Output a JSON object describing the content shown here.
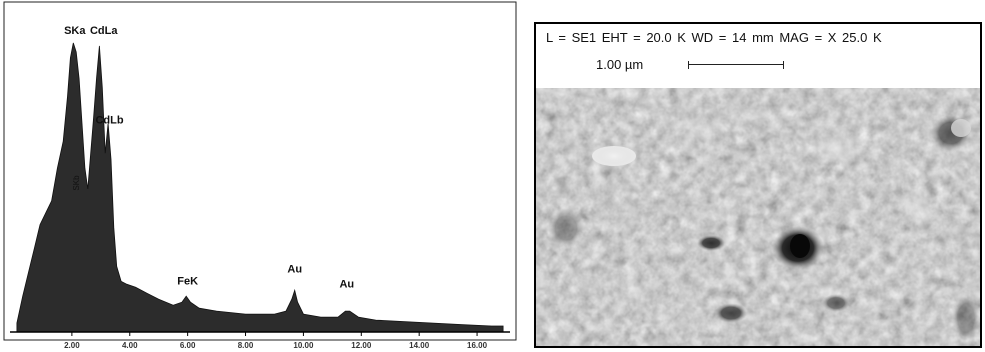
{
  "chart_data": {
    "type": "line",
    "title": "",
    "xlabel": "",
    "ylabel": "",
    "xlim": [
      0,
      17
    ],
    "ylim": [
      0,
      100
    ],
    "xticks": [
      "2.00",
      "4.00",
      "6.00",
      "8.00",
      "10.00",
      "12.00",
      "14.00",
      "16.00"
    ],
    "grid": false,
    "series": [
      {
        "x": [
          0.1,
          0.3,
          0.5,
          0.7,
          0.9,
          1.1,
          1.3,
          1.5,
          1.7,
          1.85,
          1.95,
          2.05,
          2.15,
          2.25,
          2.35,
          2.45,
          2.55,
          2.65,
          2.75,
          2.85,
          2.95,
          3.05,
          3.15,
          3.25,
          3.35,
          3.45,
          3.55,
          3.7,
          3.9,
          4.2,
          4.6,
          5.0,
          5.5,
          5.8,
          5.95,
          6.1,
          6.4,
          7.0,
          8.0,
          9.0,
          9.4,
          9.6,
          9.7,
          9.8,
          10.0,
          10.6,
          11.2,
          11.45,
          11.6,
          11.9,
          12.5,
          13.5,
          14.5,
          15.5,
          16.5,
          16.9
        ],
        "y": [
          3,
          12,
          20,
          28,
          36,
          40,
          44,
          55,
          64,
          79,
          92,
          97,
          94,
          85,
          70,
          55,
          48,
          60,
          72,
          85,
          96,
          82,
          60,
          70,
          58,
          35,
          22,
          17,
          16,
          15,
          13,
          11,
          9,
          10,
          12,
          10,
          8,
          7,
          6,
          6,
          7,
          11,
          14,
          10,
          6,
          5,
          5,
          7,
          7,
          5,
          4,
          3.5,
          3,
          2.5,
          2,
          2
        ]
      }
    ],
    "annotations": [
      {
        "text": "SKa",
        "x": 2.1,
        "y": 100
      },
      {
        "text": "CdLa",
        "x": 3.1,
        "y": 100
      },
      {
        "text": "CdLb",
        "x": 3.3,
        "y": 70
      },
      {
        "text": "SKb",
        "x": 2.25,
        "y": 50
      },
      {
        "text": "FeK",
        "x": 6.0,
        "y": 16
      },
      {
        "text": "Au",
        "x": 9.7,
        "y": 20
      },
      {
        "text": "Au",
        "x": 11.5,
        "y": 15
      }
    ]
  },
  "sem": {
    "params": "L = SE1   EHT = 20.0 K   WD = 14 mm   MAG = X  25.0  K",
    "scale_label": "1.00 µm"
  }
}
